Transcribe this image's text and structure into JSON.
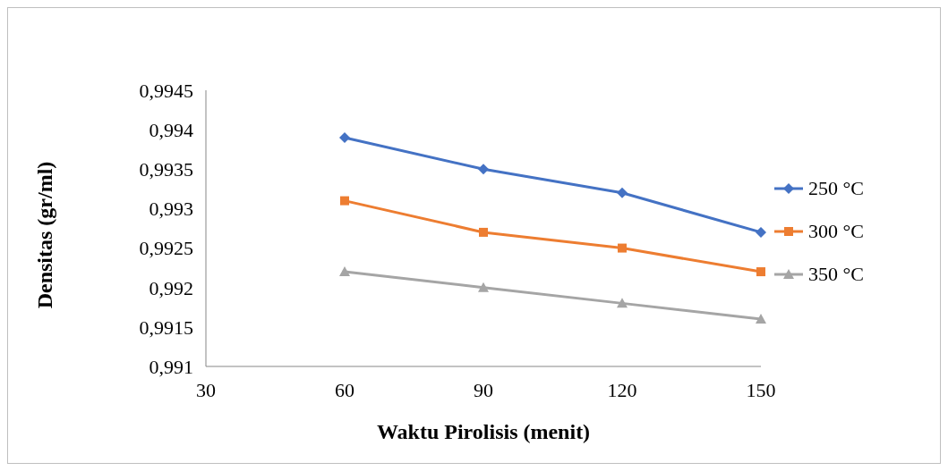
{
  "chart_data": {
    "type": "line",
    "xlabel": "Waktu Pirolisis (menit)",
    "ylabel": "Densitas (gr/ml)",
    "x": [
      60,
      90,
      120,
      150
    ],
    "series": [
      {
        "name": "250 °C",
        "color": "#4472c4",
        "marker": "diamond",
        "values": [
          0.9939,
          0.9935,
          0.9932,
          0.9927
        ]
      },
      {
        "name": "300 °C",
        "color": "#ed7d31",
        "marker": "square",
        "values": [
          0.9931,
          0.9927,
          0.9925,
          0.9922
        ]
      },
      {
        "name": "350 °C",
        "color": "#a5a5a5",
        "marker": "triangle",
        "values": [
          0.9922,
          0.992,
          0.9918,
          0.9916
        ]
      }
    ],
    "xlim": [
      30,
      150
    ],
    "xticks": [
      30,
      60,
      90,
      120,
      150
    ],
    "ylim": [
      0.991,
      0.9945
    ],
    "yticks": [
      {
        "value": 0.991,
        "label": "0,991"
      },
      {
        "value": 0.9915,
        "label": "0,9915"
      },
      {
        "value": 0.992,
        "label": "0,992"
      },
      {
        "value": 0.9925,
        "label": "0,9925"
      },
      {
        "value": 0.993,
        "label": "0,993"
      },
      {
        "value": 0.9935,
        "label": "0,9935"
      },
      {
        "value": 0.994,
        "label": "0,994"
      },
      {
        "value": 0.9945,
        "label": "0,9945"
      }
    ],
    "grid": false,
    "legend": "right",
    "line_style": "solid"
  }
}
